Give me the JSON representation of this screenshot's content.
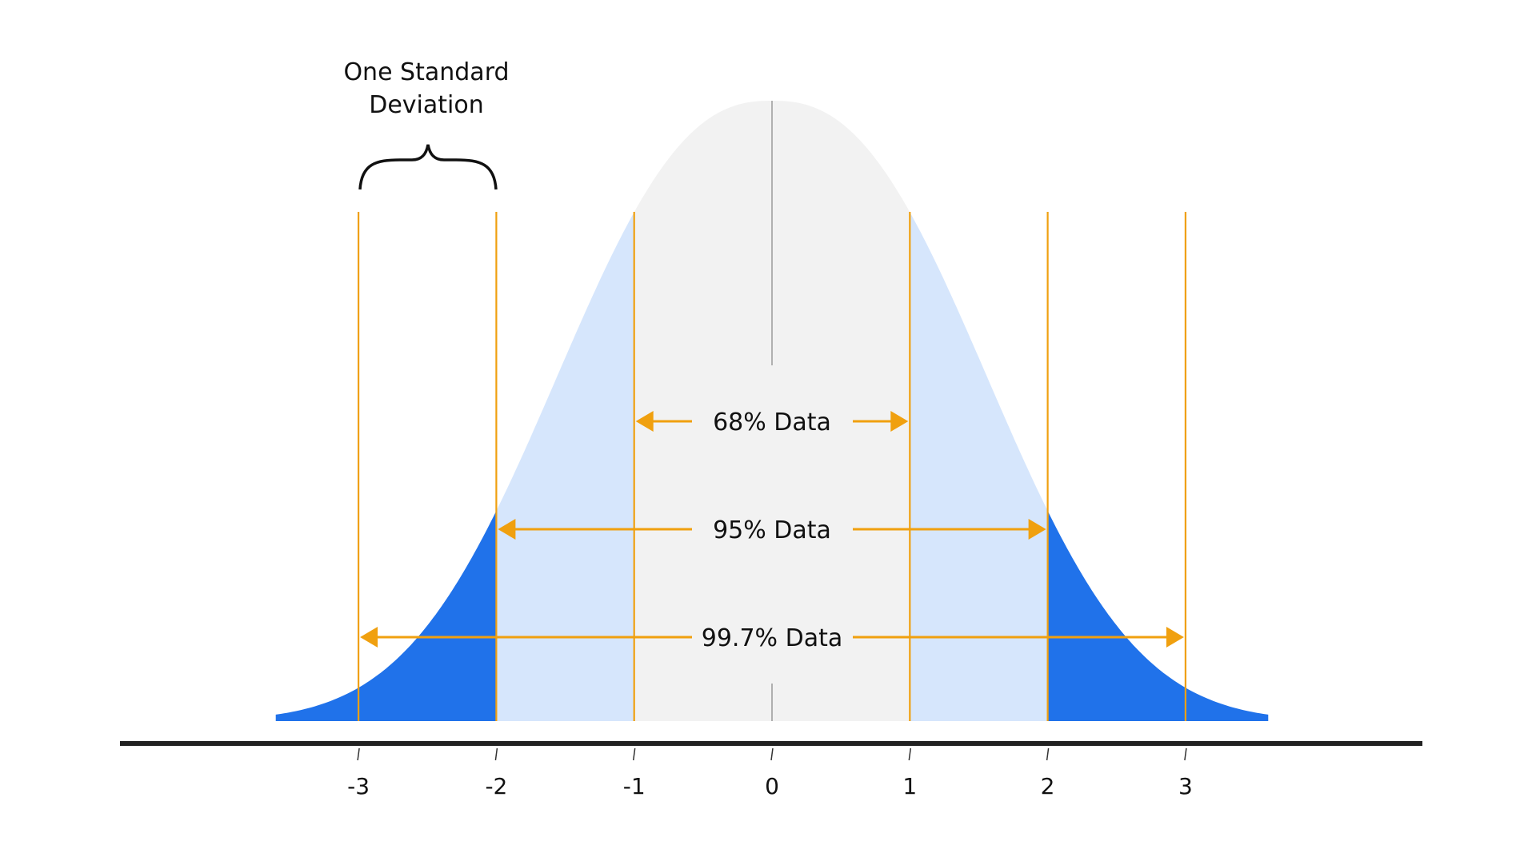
{
  "chart_data": {
    "type": "area",
    "distribution": "normal",
    "x_ticks": [
      "-3",
      "-2",
      "-1",
      "0",
      "1",
      "2",
      "3"
    ],
    "regions": [
      {
        "from": -1,
        "to": 1,
        "color": "#f2f2f2"
      },
      {
        "from": -2,
        "to": -1,
        "color": "#d6e6fc"
      },
      {
        "from": 1,
        "to": 2,
        "color": "#d6e6fc"
      },
      {
        "from": -3.6,
        "to": -2,
        "color": "#2072ea"
      },
      {
        "from": 2,
        "to": 3.6,
        "color": "#2072ea"
      }
    ],
    "annotations": {
      "brace_label_line1": "One Standard",
      "brace_label_line2": "Deviation",
      "ranges": [
        {
          "label": "68% Data",
          "from": -1,
          "to": 1
        },
        {
          "label": "95% Data",
          "from": -2,
          "to": 2
        },
        {
          "label": "99.7% Data",
          "from": -3,
          "to": 3
        }
      ]
    },
    "colors": {
      "marker_lines": "#f0a00f",
      "axis": "#222222",
      "center_line": "#999999"
    }
  }
}
